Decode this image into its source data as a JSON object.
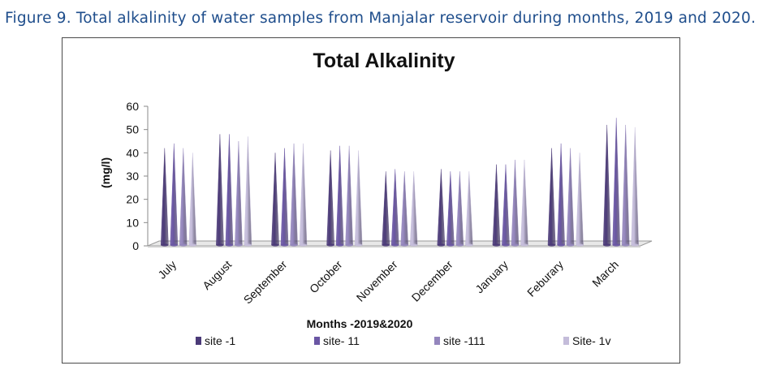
{
  "caption": {
    "label": "Figure 9.",
    "text": "Total alkalinity of water samples from Manjalar reservoir during months, 2019 and 2020."
  },
  "chart_data": {
    "type": "bar",
    "style": "3d-cone",
    "title": "Total Alkalinity",
    "xlabel": "Months -2019&2020",
    "ylabel": "(mg/l)",
    "ylim": [
      0,
      60
    ],
    "yticks": [
      "0",
      "10",
      "20",
      "30",
      "40",
      "50",
      "60"
    ],
    "grid": false,
    "legend_position": "bottom",
    "categories": [
      "July",
      "August",
      "September",
      "October",
      "November",
      "December",
      "January",
      "Feburary",
      "March"
    ],
    "series": [
      {
        "name": "site -1",
        "color": "#4b3a78",
        "values": [
          42,
          48,
          40,
          41,
          32,
          33,
          35,
          42,
          52
        ]
      },
      {
        "name": "site- 11",
        "color": "#6a56a4",
        "values": [
          44,
          48,
          42,
          43,
          33,
          32,
          35,
          44,
          55
        ]
      },
      {
        "name": "site -111",
        "color": "#9486bd",
        "values": [
          42,
          45,
          44,
          43,
          32,
          32,
          37,
          42,
          52
        ]
      },
      {
        "name": "Site- 1v",
        "color": "#c4bcda",
        "values": [
          40,
          47,
          44,
          41,
          32,
          32,
          37,
          40,
          51
        ]
      }
    ]
  }
}
